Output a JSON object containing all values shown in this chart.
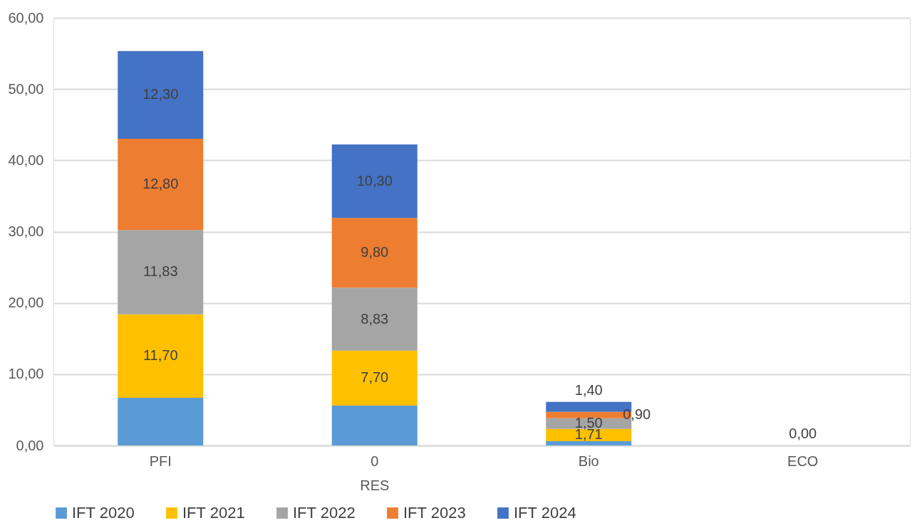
{
  "chart_data": {
    "type": "bar",
    "stacked": true,
    "categories": [
      "PFI",
      "0\nRES",
      "Bio",
      "ECO"
    ],
    "series": [
      {
        "name": "IFT 2020",
        "color": "#5b9bd5",
        "values": [
          6.7,
          5.6,
          0.6,
          0
        ],
        "value_labels": [
          null,
          null,
          null,
          null
        ]
      },
      {
        "name": "IFT 2021",
        "color": "#ffc000",
        "values": [
          11.7,
          7.7,
          1.71,
          0
        ],
        "value_labels": [
          "11,70",
          "7,70",
          "1,71",
          null
        ]
      },
      {
        "name": "IFT 2022",
        "color": "#a5a5a5",
        "values": [
          11.83,
          8.83,
          1.5,
          0
        ],
        "value_labels": [
          "11,83",
          "8,83",
          "1,50",
          null
        ]
      },
      {
        "name": "IFT 2023",
        "color": "#ed7d31",
        "values": [
          12.8,
          9.8,
          0.9,
          0
        ],
        "value_labels": [
          "12,80",
          "9,80",
          "0,90",
          null
        ]
      },
      {
        "name": "IFT 2024",
        "color": "#4472c4",
        "values": [
          12.3,
          10.3,
          1.4,
          0
        ],
        "value_labels": [
          "12,30",
          "10,30",
          "1,40",
          "0,00"
        ]
      }
    ],
    "ylim": [
      0,
      60
    ],
    "yticks": [
      {
        "value": 0,
        "label": "0,00"
      },
      {
        "value": 10,
        "label": "10,00"
      },
      {
        "value": 20,
        "label": "20,00"
      },
      {
        "value": 30,
        "label": "30,00"
      },
      {
        "value": 40,
        "label": "40,00"
      },
      {
        "value": 50,
        "label": "50,00"
      },
      {
        "value": 60,
        "label": "60,00"
      }
    ],
    "grid": "y",
    "legend": "bottom"
  }
}
